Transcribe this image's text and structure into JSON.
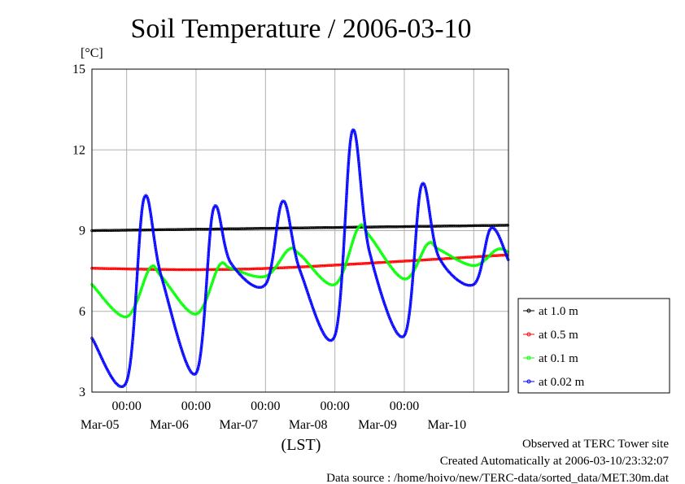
{
  "chart_data": {
    "type": "line",
    "title": "Soil Temperature / 2006-03-10",
    "ylabel": "[°C]",
    "xlabel": "(LST)",
    "ylim": [
      3,
      15
    ],
    "yticks": [
      3,
      6,
      9,
      12,
      15
    ],
    "xlim": [
      "2006-03-04 12:00",
      "2006-03-10 12:00"
    ],
    "x_time_ticks": [
      {
        "x": "2006-03-05 00:00",
        "time": "00:00",
        "date": "Mar-05"
      },
      {
        "x": "2006-03-06 00:00",
        "time": "00:00",
        "date": "Mar-06"
      },
      {
        "x": "2006-03-07 00:00",
        "time": "00:00",
        "date": "Mar-07"
      },
      {
        "x": "2006-03-08 00:00",
        "time": "00:00",
        "date": "Mar-08"
      },
      {
        "x": "2006-03-09 00:00",
        "time": "00:00",
        "date": "Mar-09"
      },
      {
        "x": "2006-03-10 00:00",
        "time": "",
        "date": "Mar-10"
      }
    ],
    "grid": true,
    "legend_position": "right",
    "series": [
      {
        "name": "at 1.0 m",
        "color": "#000000",
        "x": [
          "2006-03-04 12:00",
          "2006-03-10 12:00"
        ],
        "y": [
          9.0,
          9.2
        ]
      },
      {
        "name": "at 0.5 m",
        "color": "#ff0000",
        "x": [
          "2006-03-04 12:00",
          "2006-03-06 00:00",
          "2006-03-07 12:00",
          "2006-03-10 12:00"
        ],
        "y": [
          7.6,
          7.55,
          7.65,
          8.1
        ]
      },
      {
        "name": "at 0.1 m",
        "color": "#00ff00",
        "x": [
          "2006-03-04 12:00",
          "2006-03-05 00:00",
          "2006-03-05 08:00",
          "2006-03-05 12:00",
          "2006-03-06 00:00",
          "2006-03-06 08:00",
          "2006-03-06 12:00",
          "2006-03-07 00:00",
          "2006-03-07 08:00",
          "2006-03-07 12:00",
          "2006-03-08 00:00",
          "2006-03-08 08:00",
          "2006-03-08 12:00",
          "2006-03-09 00:00",
          "2006-03-09 08:00",
          "2006-03-09 12:00",
          "2006-03-10 00:00",
          "2006-03-10 08:00",
          "2006-03-10 12:00"
        ],
        "y": [
          7.0,
          5.8,
          7.6,
          7.3,
          5.9,
          7.7,
          7.6,
          7.3,
          8.3,
          8.1,
          7.0,
          9.1,
          8.8,
          7.2,
          8.5,
          8.3,
          7.7,
          8.3,
          8.2
        ]
      },
      {
        "name": "at 0.02 m",
        "color": "#0000ff",
        "x": [
          "2006-03-04 12:00",
          "2006-03-05 00:00",
          "2006-03-05 06:00",
          "2006-03-05 12:00",
          "2006-03-06 00:00",
          "2006-03-06 06:00",
          "2006-03-06 12:00",
          "2006-03-07 00:00",
          "2006-03-07 06:00",
          "2006-03-07 12:00",
          "2006-03-08 00:00",
          "2006-03-08 06:00",
          "2006-03-08 12:00",
          "2006-03-09 00:00",
          "2006-03-09 06:00",
          "2006-03-09 12:00",
          "2006-03-10 00:00",
          "2006-03-10 06:00",
          "2006-03-10 12:00"
        ],
        "y": [
          5.0,
          3.4,
          10.2,
          7.3,
          3.7,
          9.8,
          7.8,
          7.0,
          10.1,
          7.5,
          5.1,
          12.7,
          8.2,
          5.1,
          10.7,
          8.0,
          7.0,
          9.1,
          7.9
        ]
      }
    ]
  },
  "footer": {
    "line1": "Observed at TERC Tower site",
    "line2": "Created Automatically at 2006-03-10/23:32:07",
    "line3": "Data source : /home/hoivo/new/TERC-data/sorted_data/MET.30m.dat"
  }
}
